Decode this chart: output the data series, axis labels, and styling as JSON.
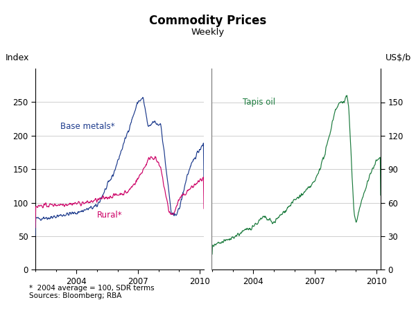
{
  "title": "Commodity Prices",
  "subtitle": "Weekly",
  "left_ylabel": "Index",
  "right_ylabel": "US$/b",
  "footnote": "*  2004 average = 100, SDR terms\nSources: Bloomberg; RBA",
  "left_ylim": [
    0,
    300
  ],
  "right_ylim": [
    0,
    180
  ],
  "left_yticks": [
    0,
    50,
    100,
    150,
    200,
    250
  ],
  "right_yticks": [
    0,
    30,
    60,
    90,
    120,
    150
  ],
  "base_metals_label": "Base metals*",
  "rural_label": "Rural*",
  "tapis_label": "Tapis oil",
  "base_metals_color": "#1c3a8c",
  "rural_color": "#cc0066",
  "tapis_color": "#1a7a3c",
  "divider_color": "#808080",
  "grid_color": "#c8c8c8",
  "background_color": "#ffffff"
}
